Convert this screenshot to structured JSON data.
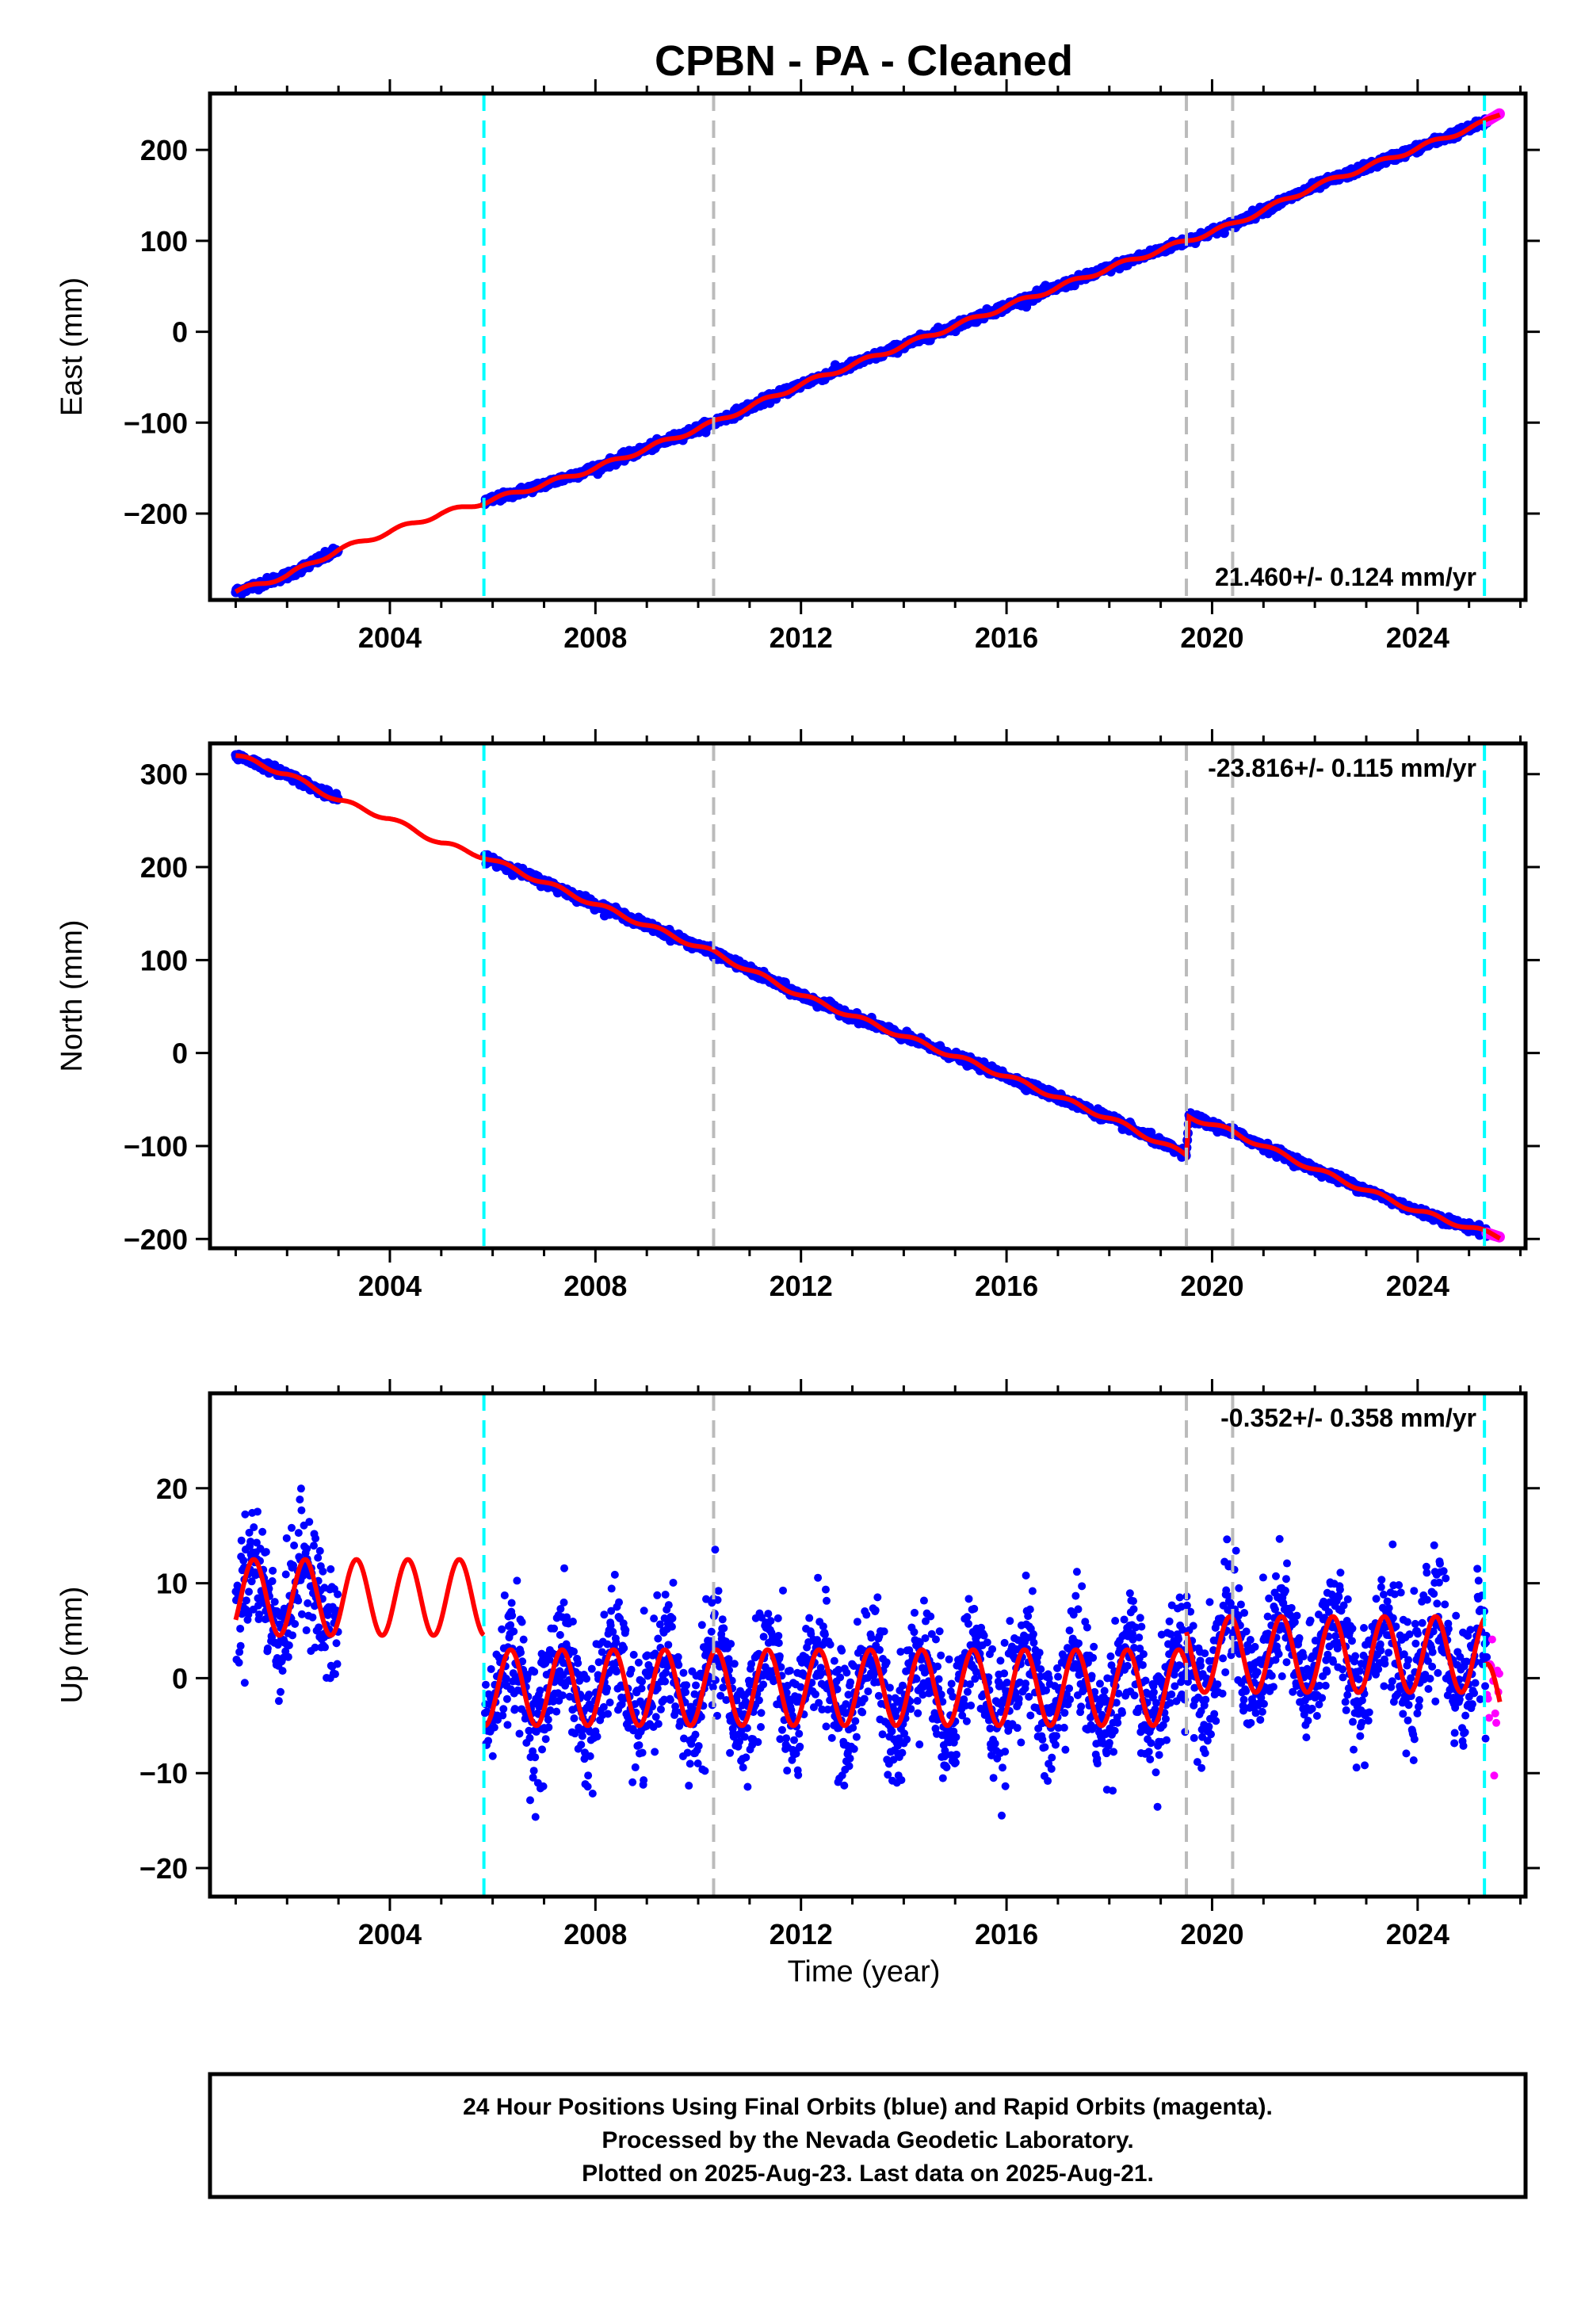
{
  "title": "CPBN  - PA - Cleaned",
  "xlabel": "Time (year)",
  "x_ticks": [
    2004,
    2008,
    2012,
    2016,
    2020,
    2024
  ],
  "xlim": [
    2000.5,
    2026.1
  ],
  "colors": {
    "final": "#0000ff",
    "rapid": "#ff00ff",
    "model": "#ff0000",
    "equipment_change": "#00ffff",
    "other_event": "#bbbbbb"
  },
  "footer": {
    "line1": "24 Hour Positions Using Final Orbits (blue) and Rapid Orbits (magenta).",
    "line2": "Processed by the Nevada Geodetic Laboratory.",
    "line3": "Plotted on 2025-Aug-23. Last data on 2025-Aug-21."
  },
  "chart_data": [
    {
      "type": "scatter",
      "component": "east",
      "ylabel": "East (mm)",
      "ylim": [
        -295,
        262
      ],
      "y_ticks": [
        -200,
        -100,
        0,
        100,
        200
      ],
      "rate_label": "21.460+/- 0.124 mm/yr",
      "rate_position": "bottom-right",
      "cyan_events": [
        2005.83,
        2025.3
      ],
      "gray_events": [
        2010.3,
        2019.5,
        2020.4
      ],
      "model_points": [
        [
          2001.0,
          -286
        ],
        [
          2002.0,
          -268
        ],
        [
          2003.0,
          -240
        ],
        [
          2004.0,
          -220
        ],
        [
          2005.0,
          -200
        ],
        [
          2005.8,
          -188
        ],
        [
          2007.0,
          -168
        ],
        [
          2008.0,
          -150
        ],
        [
          2010.3,
          -100
        ],
        [
          2012.0,
          -58
        ],
        [
          2014.0,
          -15
        ],
        [
          2016.0,
          28
        ],
        [
          2018.0,
          70
        ],
        [
          2019.5,
          100
        ],
        [
          2020.4,
          118
        ],
        [
          2022.0,
          160
        ],
        [
          2024.0,
          202
        ],
        [
          2025.3,
          230
        ],
        [
          2025.6,
          240
        ]
      ],
      "final_range": [
        [
          2001.0,
          2003.0
        ],
        [
          2005.85,
          2025.35
        ]
      ],
      "rapid_range": [
        2025.35,
        2025.6
      ]
    },
    {
      "type": "scatter",
      "component": "north",
      "ylabel": "North (mm)",
      "ylim": [
        -210,
        333
      ],
      "y_ticks": [
        -200,
        -100,
        0,
        100,
        200,
        300
      ],
      "rate_label": "-23.816+/- 0.115 mm/yr",
      "rate_position": "top-right",
      "cyan_events": [
        2005.83,
        2025.3
      ],
      "gray_events": [
        2010.3,
        2019.5,
        2020.4
      ],
      "model_points": [
        [
          2001.0,
          320
        ],
        [
          2002.0,
          300
        ],
        [
          2003.0,
          272
        ],
        [
          2004.0,
          252
        ],
        [
          2005.0,
          226
        ],
        [
          2005.8,
          212
        ],
        [
          2008.0,
          160
        ],
        [
          2010.3,
          108
        ],
        [
          2012.0,
          62
        ],
        [
          2014.0,
          18
        ],
        [
          2016.0,
          -25
        ],
        [
          2018.0,
          -70
        ],
        [
          2019.5,
          -110
        ],
        [
          2019.55,
          -68
        ],
        [
          2020.4,
          -85
        ],
        [
          2022.0,
          -125
        ],
        [
          2024.0,
          -170
        ],
        [
          2025.6,
          -198
        ]
      ],
      "final_range": [
        [
          2001.0,
          2003.0
        ],
        [
          2005.85,
          2025.35
        ]
      ],
      "rapid_range": [
        2025.35,
        2025.6
      ]
    },
    {
      "type": "scatter",
      "component": "up",
      "ylabel": "Up (mm)",
      "ylim": [
        -23,
        30
      ],
      "y_ticks": [
        -20,
        -10,
        0,
        10,
        20
      ],
      "rate_label": "-0.352+/- 0.358 mm/yr",
      "rate_position": "top-right",
      "cyan_events": [
        2005.83,
        2025.3
      ],
      "gray_events": [
        2010.3,
        2019.5,
        2020.4
      ],
      "seasonal_amplitude_mm": 4,
      "segment_means_mm": [
        [
          2001.0,
          2005.83,
          8.5
        ],
        [
          2005.83,
          2019.5,
          -1.0
        ],
        [
          2019.5,
          2025.3,
          2.5
        ],
        [
          2025.3,
          2025.6,
          -2.5
        ]
      ],
      "scatter_sd_mm": 3.2,
      "final_range": [
        [
          2001.0,
          2003.0
        ],
        [
          2005.85,
          2025.35
        ]
      ],
      "rapid_range": [
        2025.35,
        2025.6
      ]
    }
  ]
}
